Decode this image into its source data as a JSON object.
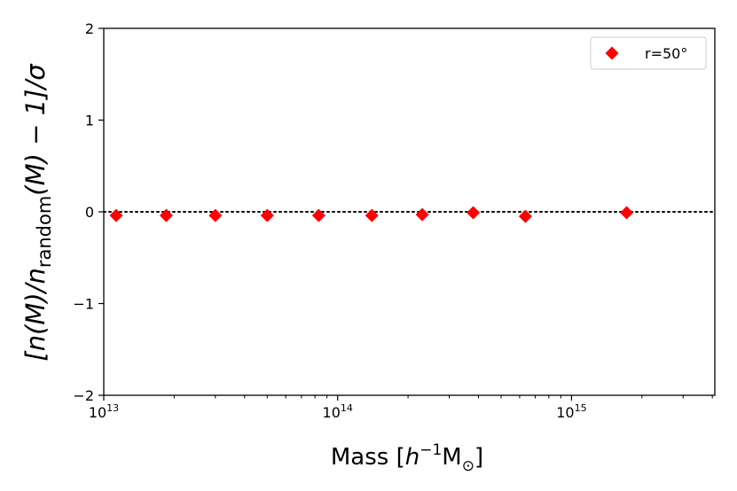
{
  "chart_data": {
    "type": "scatter",
    "title": "",
    "xlabel_main": "Mass [",
    "xlabel_h": "h",
    "xlabel_exp": "−1",
    "xlabel_msun": "M",
    "xlabel_sun_sub": "⊙",
    "xlabel_close": "]",
    "ylabel_main": "[n(M)/n",
    "ylabel_sub": "random",
    "ylabel_tail": "(M) − 1]/σ",
    "xscale": "log",
    "xlim": [
      10000000000000.0,
      4100000000000000.0
    ],
    "ylim": [
      -2,
      2
    ],
    "x_ticks": [
      {
        "base": "10",
        "exp": "13",
        "value": 10000000000000.0
      },
      {
        "base": "10",
        "exp": "14",
        "value": 100000000000000.0
      },
      {
        "base": "10",
        "exp": "15",
        "value": 1000000000000000.0
      }
    ],
    "y_ticks": [
      {
        "label": "−2",
        "value": -2
      },
      {
        "label": "−1",
        "value": -1
      },
      {
        "label": "0",
        "value": 0
      },
      {
        "label": "1",
        "value": 1
      },
      {
        "label": "2",
        "value": 2
      }
    ],
    "reference_line": {
      "y": 0,
      "style": "dotted",
      "color": "#000000"
    },
    "series": [
      {
        "name": "r=50°",
        "marker": "diamond",
        "color": "#ff0000",
        "x": [
          11300000000000.0,
          18500000000000.0,
          30000000000000.0,
          50000000000000.0,
          83000000000000.0,
          140000000000000.0,
          230000000000000.0,
          380000000000000.0,
          635000000000000.0,
          1720000000000000.0
        ],
        "y": [
          -0.04,
          -0.04,
          -0.04,
          -0.04,
          -0.04,
          -0.04,
          -0.03,
          -0.01,
          -0.05,
          -0.01
        ]
      }
    ],
    "legend": {
      "position": "top-right",
      "entries": [
        "r=50°"
      ]
    },
    "grid": false
  }
}
